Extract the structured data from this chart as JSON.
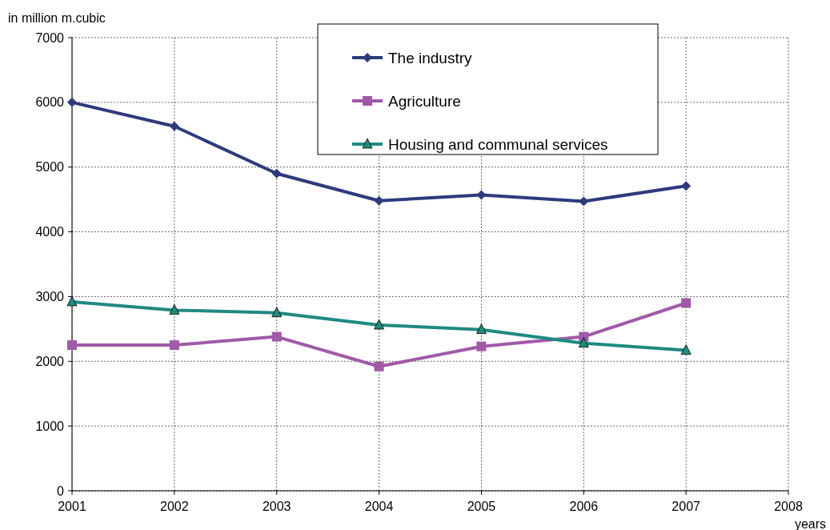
{
  "chart_data": {
    "type": "line",
    "xlabel": "years",
    "ylabel": "in million m.cubic",
    "x": [
      2001,
      2002,
      2003,
      2004,
      2005,
      2006,
      2007
    ],
    "series": [
      {
        "name": "The industry",
        "color": "#2e3a7c",
        "marker": "diamond",
        "values": [
          6000,
          5630,
          4900,
          4480,
          4570,
          4470,
          4710
        ]
      },
      {
        "name": "Agriculture",
        "color": "#a05aa8",
        "marker": "square",
        "values": [
          2250,
          2250,
          2380,
          1920,
          2230,
          2380,
          2900
        ]
      },
      {
        "name": "Housing and communal services",
        "color": "#1f8a80",
        "marker": "triangle",
        "values": [
          2920,
          2790,
          2750,
          2560,
          2490,
          2280,
          2170
        ]
      }
    ],
    "xlim": [
      2001,
      2008
    ],
    "xticks": [
      2001,
      2002,
      2003,
      2004,
      2005,
      2006,
      2007,
      2008
    ],
    "ylim": [
      0,
      7000
    ],
    "yticks": [
      0,
      1000,
      2000,
      3000,
      4000,
      5000,
      6000,
      7000
    ],
    "grid": true,
    "legend": "top",
    "line_style": "solid"
  }
}
